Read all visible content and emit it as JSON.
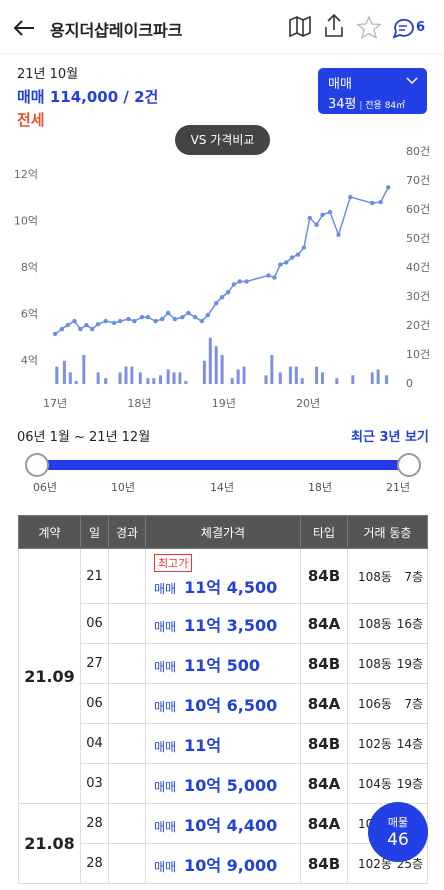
{
  "header": {
    "title": "용지더샵레이크파크",
    "chat_count": "6"
  },
  "summary": {
    "month": "21년 10월",
    "trade": "매매 114,000 / 2건",
    "lease": "전세"
  },
  "selector": {
    "trade_type": "매매",
    "size": "34평",
    "area": "전용 84㎡"
  },
  "compare_button": "VS 가격비교",
  "chart": {
    "type": "line",
    "price": {
      "color": "#6a8ee6",
      "x": [
        2017.0,
        2017.08,
        2017.15,
        2017.23,
        2017.3,
        2017.37,
        2017.44,
        2017.51,
        2017.6,
        2017.7,
        2017.77,
        2017.87,
        2017.94,
        2018.03,
        2018.1,
        2018.19,
        2018.27,
        2018.34,
        2018.42,
        2018.51,
        2018.58,
        2018.66,
        2018.74,
        2018.81,
        2018.91,
        2018.98,
        2019.05,
        2019.12,
        2019.19,
        2019.27,
        2019.53,
        2019.6,
        2019.67,
        2019.74,
        2019.81,
        2019.88,
        2019.95,
        2020.02,
        2020.1,
        2020.17,
        2020.26,
        2020.36,
        2020.5,
        2020.76,
        2020.86,
        2020.95
      ],
      "values": [
        5.16,
        5.37,
        5.54,
        5.71,
        5.37,
        5.54,
        5.37,
        5.58,
        5.71,
        5.63,
        5.71,
        5.8,
        5.71,
        5.88,
        5.88,
        5.71,
        5.8,
        6.06,
        5.8,
        5.88,
        6.06,
        5.88,
        5.71,
        5.97,
        6.48,
        6.74,
        6.95,
        7.29,
        7.42,
        7.42,
        7.68,
        7.59,
        8.15,
        8.24,
        8.45,
        8.58,
        8.88,
        10.16,
        9.86,
        10.29,
        10.41,
        9.43,
        11.06,
        10.8,
        10.84,
        11.48
      ]
    },
    "volume": {
      "color": "#7d8fe6",
      "axis": "y2",
      "x": [
        2017.02,
        2017.11,
        2017.18,
        2017.25,
        2017.34,
        2017.51,
        2017.6,
        2017.77,
        2017.84,
        2017.91,
        2018.01,
        2018.1,
        2018.17,
        2018.25,
        2018.34,
        2018.41,
        2018.48,
        2018.55,
        2018.77,
        2018.84,
        2018.91,
        2018.98,
        2019.1,
        2019.17,
        2019.24,
        2019.5,
        2019.57,
        2019.67,
        2019.79,
        2019.86,
        2019.93,
        2020.1,
        2020.17,
        2020.34,
        2020.53,
        2020.76,
        2020.83,
        2020.93
      ],
      "values": [
        6,
        8,
        4,
        1,
        10,
        4,
        2,
        4,
        6,
        6,
        4,
        2,
        2,
        3,
        5,
        4,
        4,
        1,
        8,
        16,
        13,
        10,
        2,
        5,
        6,
        3,
        10,
        4,
        6,
        6,
        2,
        6,
        4,
        2,
        3,
        4,
        5,
        3
      ]
    },
    "xlim": [
      2016.88,
      2021.03
    ],
    "xticks": [
      {
        "value": 2017,
        "label": "17년"
      },
      {
        "value": 2018,
        "label": "18년"
      },
      {
        "value": 2019,
        "label": "19년"
      },
      {
        "value": 2020,
        "label": "20년"
      }
    ],
    "ylim": [
      3,
      13
    ],
    "yticks": [
      {
        "value": 4,
        "label": "4억"
      },
      {
        "value": 6,
        "label": "6억"
      },
      {
        "value": 8,
        "label": "8억"
      },
      {
        "value": 10,
        "label": "10억"
      },
      {
        "value": 12,
        "label": "12억"
      }
    ],
    "y2lim": [
      0,
      80
    ],
    "y2ticks": [
      0,
      {
        "value": 10,
        "label": "10건"
      },
      {
        "value": 20,
        "label": "20건"
      },
      {
        "value": 30,
        "label": "30건"
      },
      {
        "value": 40,
        "label": "40건"
      },
      {
        "value": 50,
        "label": "50건"
      },
      {
        "value": 60,
        "label": "60건"
      },
      {
        "value": 70,
        "label": "70건"
      },
      {
        "value": 80,
        "label": "80건"
      }
    ]
  },
  "range": {
    "label": "06년 1월 ~ 21년 12월",
    "recent": "최근 3년 보기",
    "ticks": [
      "06년",
      "10년",
      "14년",
      "18년",
      "21년"
    ]
  },
  "table": {
    "columns": [
      "계약",
      "일",
      "경과",
      "체결가격",
      "타입",
      "거래 동층"
    ],
    "groups": [
      {
        "contract": "21.09",
        "rows": [
          {
            "day": "21",
            "badge": "최고가",
            "trade": "매매",
            "price": "11억 4,500",
            "type": "84B",
            "dong": "108동",
            "floor": "7층"
          },
          {
            "day": "06",
            "trade": "매매",
            "price": "11억 3,500",
            "type": "84A",
            "dong": "108동",
            "floor": "16층"
          },
          {
            "day": "27",
            "trade": "매매",
            "price": "11억 500",
            "type": "84B",
            "dong": "108동",
            "floor": "19층"
          },
          {
            "day": "06",
            "trade": "매매",
            "price": "10억 6,500",
            "type": "84A",
            "dong": "106동",
            "floor": "7층"
          },
          {
            "day": "04",
            "trade": "매매",
            "price": "11억",
            "type": "84B",
            "dong": "102동",
            "floor": "14층"
          },
          {
            "day": "03",
            "trade": "매매",
            "price": "10억 5,000",
            "type": "84A",
            "dong": "104동",
            "floor": "19층"
          }
        ]
      },
      {
        "contract": "21.08",
        "rows": [
          {
            "day": "28",
            "trade": "매매",
            "price": "10억 4,400",
            "type": "84A",
            "dong": "10"
          },
          {
            "day": "28",
            "trade": "매매",
            "price": "10억 9,000",
            "type": "84B",
            "dong": "102동",
            "floor": "25층"
          }
        ]
      }
    ]
  },
  "listing_button": {
    "label": "매물",
    "count": "46"
  }
}
